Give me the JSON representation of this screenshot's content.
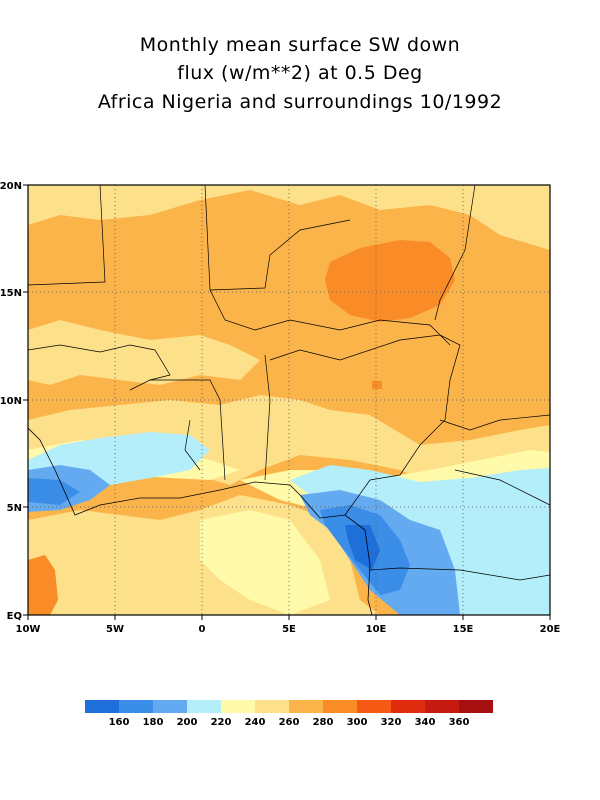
{
  "title": {
    "line1": "Monthly mean surface SW down",
    "line2": "flux (w/m**2) at 0.5 Deg",
    "line3": "Africa Nigeria and surroundings 10/1992"
  },
  "map": {
    "lon_range": [
      -10,
      20
    ],
    "lat_range": [
      0,
      20
    ],
    "x_ticks": [
      "10W",
      "5W",
      "0",
      "5E",
      "10E",
      "15E",
      "20E"
    ],
    "y_ticks": [
      "EQ",
      "5N",
      "10N",
      "15N",
      "20N"
    ],
    "grid": "dotted"
  },
  "colorbar": {
    "labels": [
      "160",
      "180",
      "200",
      "220",
      "240",
      "260",
      "280",
      "300",
      "320",
      "340",
      "360"
    ],
    "colors": [
      "#1e6fd9",
      "#3b8ee8",
      "#64aaf0",
      "#b4eefa",
      "#fffaaa",
      "#fde18a",
      "#fbb44a",
      "#fa8c28",
      "#f55a14",
      "#e12d0f",
      "#c41a0f",
      "#a50f0f"
    ]
  }
}
